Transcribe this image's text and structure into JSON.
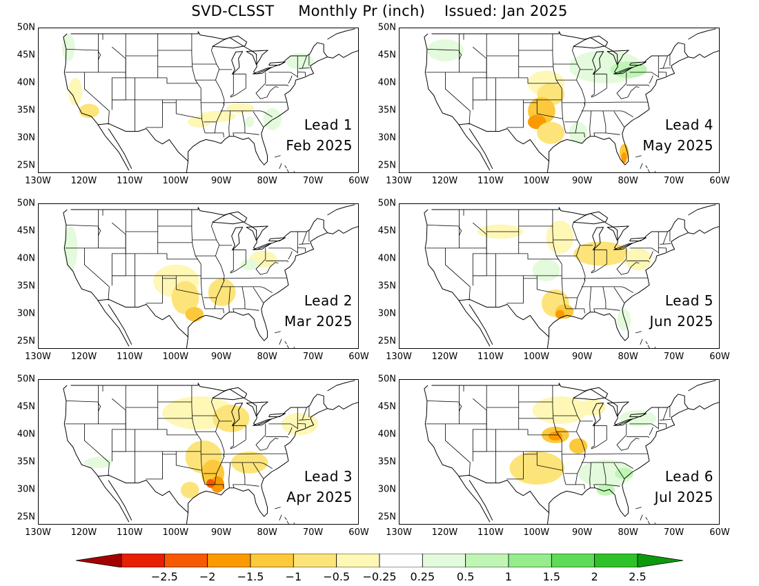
{
  "header": {
    "title": "SVD-CLSST     Monthly Pr (inch)    Issued: Jan 2025"
  },
  "axes": {
    "lat_labels": [
      "50N",
      "45N",
      "40N",
      "35N",
      "30N",
      "25N"
    ],
    "lon_labels": [
      "130W",
      "120W",
      "110W",
      "100W",
      "90W",
      "80W",
      "70W",
      "60W"
    ]
  },
  "panels": [
    {
      "lead": "Lead 1",
      "month": "Feb 2025"
    },
    {
      "lead": "Lead 4",
      "month": "May 2025"
    },
    {
      "lead": "Lead 2",
      "month": "Mar 2025"
    },
    {
      "lead": "Lead 5",
      "month": "Jun 2025"
    },
    {
      "lead": "Lead 3",
      "month": "Apr 2025"
    },
    {
      "lead": "Lead 6",
      "month": "Jul 2025"
    }
  ],
  "colorbar": {
    "labels": [
      "-2.5",
      "-2",
      "-1.5",
      "-1",
      "-0.5",
      "-0.25",
      "0.25",
      "0.5",
      "1",
      "1.5",
      "2",
      "2.5"
    ],
    "colors": [
      "#a50000",
      "#e62000",
      "#f55a00",
      "#fb9a00",
      "#fcc93c",
      "#fde47a",
      "#fef7b6",
      "#ffffff",
      "#e3fbdc",
      "#bff5b5",
      "#94ec8a",
      "#5fdc57",
      "#2fc129",
      "#0c9a0c"
    ]
  }
}
